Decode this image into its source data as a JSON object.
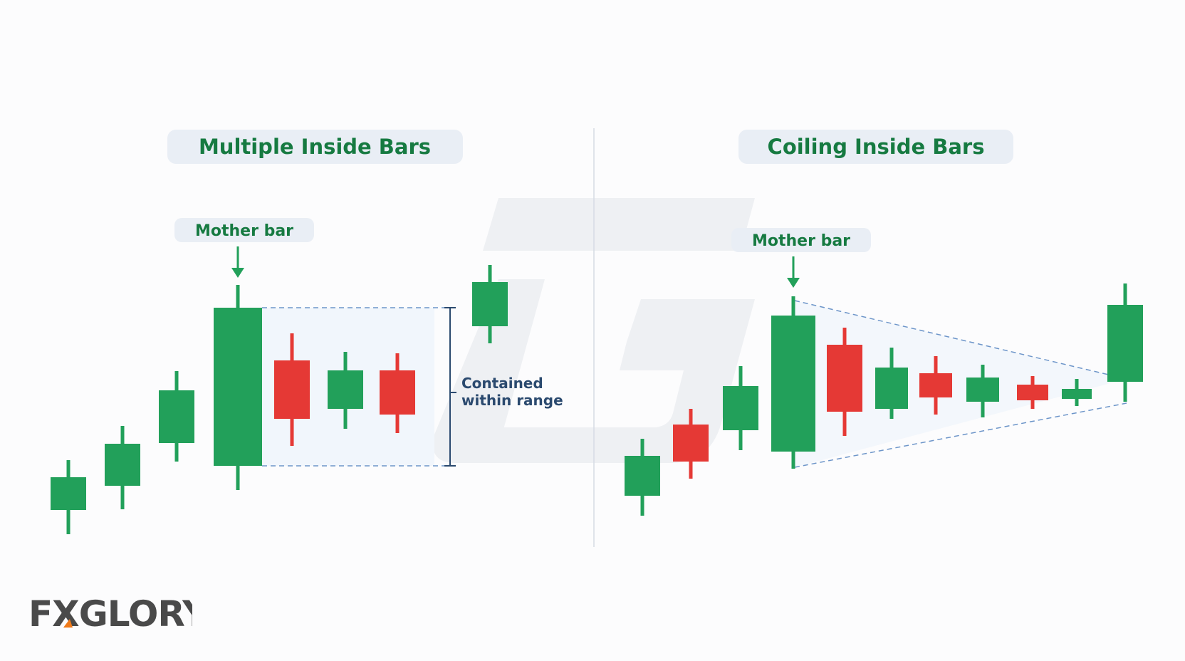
{
  "colors": {
    "bull": "#22a05a",
    "bear": "#e53935",
    "label_green": "#167a41",
    "note_blue": "#2b4a6f",
    "guide": "#6d95c9",
    "pill_bg": "#e9eef5",
    "logo_gray": "#4a4a4a",
    "logo_accent": "#f07a1a"
  },
  "panels": [
    {
      "title": "Multiple Inside Bars",
      "mother_label": "Mother bar",
      "range_note": [
        "Contained",
        "within range"
      ]
    },
    {
      "title": "Coiling Inside Bars",
      "mother_label": "Mother bar"
    }
  ],
  "logo": {
    "text": "FXGLORY",
    "accent_icon": "orange-triangle-icon"
  },
  "watermark_icon": "g-watermark-icon",
  "arrow_icon": "down-arrow-icon"
}
